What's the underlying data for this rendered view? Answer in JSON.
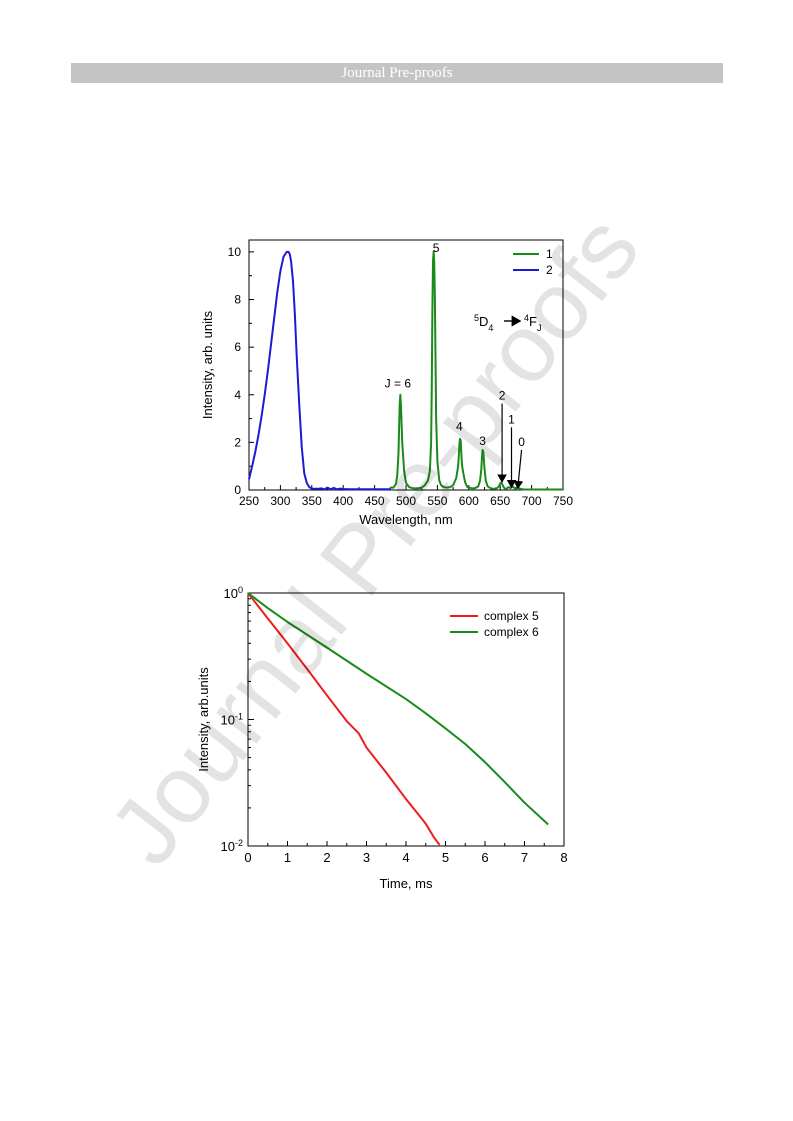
{
  "header": {
    "banner_text": "Journal Pre-proofs"
  },
  "watermark_text": "Journal Pre-proofs",
  "chart_data": [
    {
      "type": "line",
      "xlabel": "Wavelength, nm",
      "ylabel": "Intensity, arb. units",
      "xlim": [
        250,
        750
      ],
      "ylim": [
        0,
        10.5
      ],
      "xticks": [
        250,
        300,
        350,
        400,
        450,
        500,
        550,
        600,
        650,
        700,
        750
      ],
      "yticks": [
        0,
        2,
        4,
        6,
        8,
        10
      ],
      "legend_position": "top-right",
      "transition_label": {
        "upper": "5",
        "term1": "D",
        "sub1": "4",
        "upper2": "4",
        "term2": "F",
        "sub2": "J"
      },
      "series": [
        {
          "name": "1",
          "color": "#1a8a1a",
          "x": [
            475,
            480,
            484,
            486,
            488,
            489,
            490,
            491,
            492,
            494,
            497,
            500,
            505,
            510,
            515,
            520,
            525,
            530,
            535,
            538,
            540,
            541,
            542,
            543,
            544,
            545,
            546,
            547,
            548,
            550,
            553,
            556,
            560,
            565,
            570,
            575,
            580,
            583,
            584,
            585,
            586,
            587,
            588,
            589,
            590,
            592,
            594,
            596,
            598,
            600,
            605,
            610,
            615,
            618,
            620,
            621,
            622,
            623,
            624,
            625,
            627,
            630,
            635,
            640,
            645,
            648,
            650,
            652,
            654,
            656,
            658,
            660,
            662,
            664,
            666,
            668,
            670,
            672,
            674,
            676,
            678,
            680,
            682,
            685,
            690,
            700,
            710,
            720,
            730,
            740,
            750
          ],
          "y": [
            0.1,
            0.1,
            0.25,
            0.6,
            1.5,
            2.6,
            3.6,
            4.0,
            3.5,
            2.0,
            0.8,
            0.3,
            0.12,
            0.08,
            0.07,
            0.08,
            0.1,
            0.2,
            0.4,
            0.8,
            2.0,
            4.2,
            7.5,
            9.6,
            10.0,
            9.5,
            8.0,
            5.5,
            3.0,
            1.2,
            0.4,
            0.2,
            0.12,
            0.1,
            0.12,
            0.2,
            0.5,
            1.0,
            1.4,
            1.9,
            2.15,
            2.1,
            1.6,
            1.1,
            0.9,
            0.6,
            0.35,
            0.2,
            0.12,
            0.1,
            0.07,
            0.08,
            0.15,
            0.4,
            0.9,
            1.4,
            1.68,
            1.6,
            1.3,
            0.9,
            0.4,
            0.15,
            0.07,
            0.05,
            0.08,
            0.15,
            0.28,
            0.32,
            0.2,
            0.1,
            0.05,
            0.05,
            0.1,
            0.12,
            0.08,
            0.1,
            0.14,
            0.1,
            0.06,
            0.08,
            0.1,
            0.08,
            0.05,
            0.03,
            0.02,
            0.02,
            0.02,
            0.02,
            0.02,
            0.02,
            0.02
          ]
        },
        {
          "name": "2",
          "color": "#1b1bd6",
          "x": [
            250,
            255,
            260,
            265,
            270,
            275,
            280,
            285,
            290,
            295,
            300,
            305,
            310,
            313,
            315,
            317,
            320,
            323,
            326,
            330,
            334,
            338,
            342,
            346,
            350,
            355,
            360,
            365,
            370,
            375,
            380,
            385,
            390,
            395,
            400,
            410,
            420,
            430,
            440,
            450,
            460,
            470,
            475
          ],
          "y": [
            0.45,
            1.0,
            1.6,
            2.3,
            3.1,
            4.0,
            5.0,
            6.1,
            7.2,
            8.3,
            9.2,
            9.8,
            10.0,
            10.0,
            9.9,
            9.6,
            8.8,
            7.4,
            5.6,
            3.6,
            1.8,
            0.7,
            0.3,
            0.12,
            0.06,
            0.05,
            0.05,
            0.07,
            0.03,
            0.1,
            0.03,
            0.09,
            0.03,
            0.06,
            0.04,
            0.03,
            0.03,
            0.03,
            0.03,
            0.03,
            0.03,
            0.03,
            0.03
          ]
        }
      ],
      "annotations": [
        {
          "text": "J = 6",
          "x": 487,
          "y": 4.3
        },
        {
          "text": "5",
          "x": 548,
          "y": 10.0
        },
        {
          "text": "4",
          "x": 585,
          "y": 2.5
        },
        {
          "text": "3",
          "x": 622,
          "y": 1.9
        },
        {
          "text": "2",
          "x": 653,
          "y": 3.8,
          "arrow_to": [
            653,
            0.35
          ]
        },
        {
          "text": "1",
          "x": 668,
          "y": 2.8,
          "arrow_to": [
            668,
            0.12
          ]
        },
        {
          "text": "0",
          "x": 684,
          "y": 1.85,
          "arrow_to": [
            678,
            0.08
          ]
        }
      ]
    },
    {
      "type": "line",
      "xlabel": "Time, ms",
      "ylabel": "Intensity, arb.units",
      "xlim": [
        0,
        8
      ],
      "ylim": [
        0.01,
        1
      ],
      "yscale": "log",
      "xticks": [
        0,
        1,
        2,
        3,
        4,
        5,
        6,
        7,
        8
      ],
      "yticks": [
        {
          "value": 1,
          "base": "10",
          "exp": "0"
        },
        {
          "value": 0.1,
          "base": "10",
          "exp": "-1"
        },
        {
          "value": 0.01,
          "base": "10",
          "exp": "-2"
        }
      ],
      "legend_position": "top-right",
      "series": [
        {
          "name": "complex 5",
          "color": "#ee1c1c",
          "x": [
            0,
            0.5,
            1,
            1.5,
            2,
            2.5,
            2.8,
            3,
            3.5,
            4,
            4.3,
            4.5,
            4.7,
            4.85
          ],
          "y": [
            1,
            0.63,
            0.4,
            0.25,
            0.155,
            0.097,
            0.078,
            0.06,
            0.038,
            0.0235,
            0.018,
            0.015,
            0.0118,
            0.0102
          ]
        },
        {
          "name": "complex 6",
          "color": "#1a8a1a",
          "x": [
            0,
            0.5,
            1,
            2,
            3,
            4,
            4.5,
            5,
            5.5,
            6,
            6.5,
            7,
            7.6
          ],
          "y": [
            1,
            0.76,
            0.59,
            0.37,
            0.23,
            0.145,
            0.112,
            0.085,
            0.064,
            0.046,
            0.032,
            0.022,
            0.0148
          ]
        }
      ]
    }
  ]
}
